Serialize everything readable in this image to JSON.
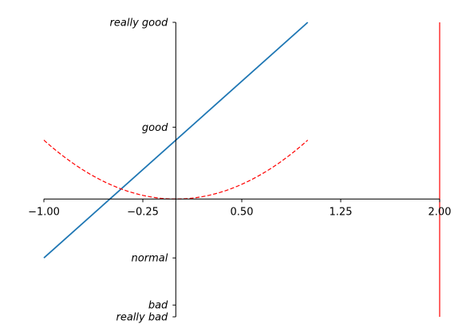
{
  "chart_data": {
    "type": "line",
    "title": "",
    "xlabel": "",
    "ylabel": "",
    "xlim": [
      -1,
      2
    ],
    "ylim": [
      -2,
      3
    ],
    "grid": false,
    "legend": "none",
    "spines": {
      "left_at_x": 0,
      "bottom_at_y": 0,
      "top": false,
      "right": false
    },
    "x_ticks": [
      {
        "value": -1.0,
        "label": "−1.00"
      },
      {
        "value": -0.25,
        "label": "−0.25"
      },
      {
        "value": 0.5,
        "label": "0.50"
      },
      {
        "value": 1.25,
        "label": "1.25"
      },
      {
        "value": 2.0,
        "label": "2.00"
      }
    ],
    "y_ticks": [
      {
        "value": -2.0,
        "label": "really bad"
      },
      {
        "value": -1.8,
        "label": "bad"
      },
      {
        "value": -1.0,
        "label": "normal"
      },
      {
        "value": 1.22,
        "label": "good"
      },
      {
        "value": 3.0,
        "label": "really good"
      }
    ],
    "series": [
      {
        "style": "solid",
        "color": "#1f77b4",
        "x": [
          -1,
          1
        ],
        "y": [
          -1,
          3
        ]
      },
      {
        "style": "dashed",
        "color": "#ff0000",
        "x": [
          -1,
          -0.75,
          -0.5,
          -0.25,
          0,
          0.25,
          0.5,
          0.75,
          1
        ],
        "y": [
          1,
          0.5625,
          0.25,
          0.0625,
          0,
          0.0625,
          0.25,
          0.5625,
          1
        ]
      },
      {
        "style": "solid",
        "color": "#ff0000",
        "x": [
          2,
          2
        ],
        "y": [
          3,
          -2
        ]
      }
    ]
  }
}
